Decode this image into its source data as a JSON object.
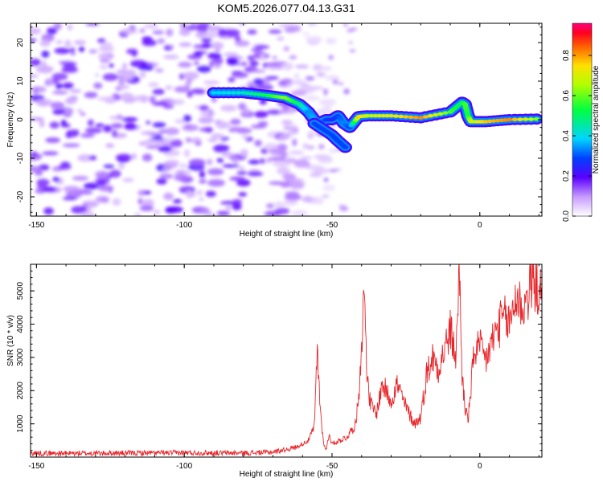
{
  "title": "KOM5.2026.077.04.13.G31",
  "chart_data": [
    {
      "type": "heatmap",
      "name": "spectrogram",
      "xlabel": "Height of straight line (km)",
      "ylabel": "Frequency (Hz)",
      "xlim": [
        -152,
        21
      ],
      "ylim": [
        -25,
        25
      ],
      "xticks": [
        -150,
        -100,
        -50,
        0
      ],
      "yticks": [
        -20,
        -10,
        0,
        10,
        20
      ],
      "colorbar": {
        "label": "Normalized spectral amplitude",
        "range": [
          0,
          0.96
        ],
        "ticks": [
          0.0,
          0.2,
          0.4,
          0.6,
          0.8
        ],
        "tick_labels": [
          "0.0",
          "0.2",
          "0.4",
          "0.6",
          "0.8"
        ]
      },
      "signal_trace": {
        "description": "frequency ridge of signal vs height",
        "x": [
          -90,
          -80,
          -72,
          -66,
          -61,
          -58,
          -55,
          -52,
          -50,
          -48,
          -46,
          -44,
          -41,
          -38,
          -30,
          -20,
          -10,
          -6,
          -5,
          -4,
          -3,
          2,
          10,
          21
        ],
        "y": [
          7,
          7,
          6.3,
          5.7,
          4,
          2,
          -1,
          0,
          0,
          1,
          -1,
          -2,
          0.8,
          1,
          1,
          0.5,
          2,
          4.5,
          4,
          1,
          -0.5,
          -0.5,
          0,
          0.2
        ],
        "amplitude": [
          0.4,
          0.45,
          0.55,
          0.65,
          0.5,
          0.35,
          0.4,
          0.3,
          0.25,
          0.3,
          0.35,
          0.3,
          0.8,
          0.7,
          0.75,
          0.85,
          0.6,
          0.5,
          0.6,
          0.55,
          0.7,
          0.8,
          0.85,
          0.6
        ]
      },
      "branch_trace": {
        "x": [
          -56,
          -53,
          -50,
          -48,
          -45
        ],
        "y": [
          -1,
          -2.5,
          -4,
          -5.5,
          -7.5
        ]
      },
      "noise_region_x": [
        -152,
        -60
      ]
    },
    {
      "type": "line",
      "name": "snr",
      "xlabel": "Height of straight line (km)",
      "ylabel": "SNR (10 * v/v)",
      "xlim": [
        -152,
        21
      ],
      "ylim": [
        0,
        5800
      ],
      "xticks": [
        -150,
        -100,
        -50,
        0
      ],
      "yticks": [
        1000,
        2000,
        3000,
        4000,
        5000
      ],
      "series": [
        {
          "name": "SNR",
          "color": "#e8262a",
          "x": [
            -152,
            -140,
            -120,
            -100,
            -80,
            -70,
            -62,
            -58,
            -56,
            -55,
            -54,
            -53,
            -52,
            -51,
            -50,
            -45,
            -42,
            -41,
            -40,
            -39,
            -38,
            -37,
            -35,
            -33,
            -30,
            -28,
            -25,
            -22,
            -20,
            -18,
            -16,
            -14,
            -12,
            -10,
            -8,
            -7,
            -6,
            -5,
            -4,
            -3,
            -2,
            0,
            2,
            5,
            8,
            10,
            12,
            15,
            18,
            21
          ],
          "y": [
            120,
            110,
            120,
            130,
            120,
            150,
            300,
            500,
            900,
            3200,
            1500,
            500,
            200,
            700,
            400,
            600,
            1000,
            1800,
            3500,
            5000,
            2200,
            1600,
            1300,
            2200,
            1700,
            2200,
            1500,
            1000,
            1200,
            2500,
            3000,
            2700,
            3200,
            3800,
            3000,
            5800,
            2500,
            1500,
            1100,
            2000,
            3200,
            3300,
            2900,
            3700,
            4200,
            4000,
            4800,
            4500,
            5400,
            4800
          ]
        }
      ]
    }
  ]
}
